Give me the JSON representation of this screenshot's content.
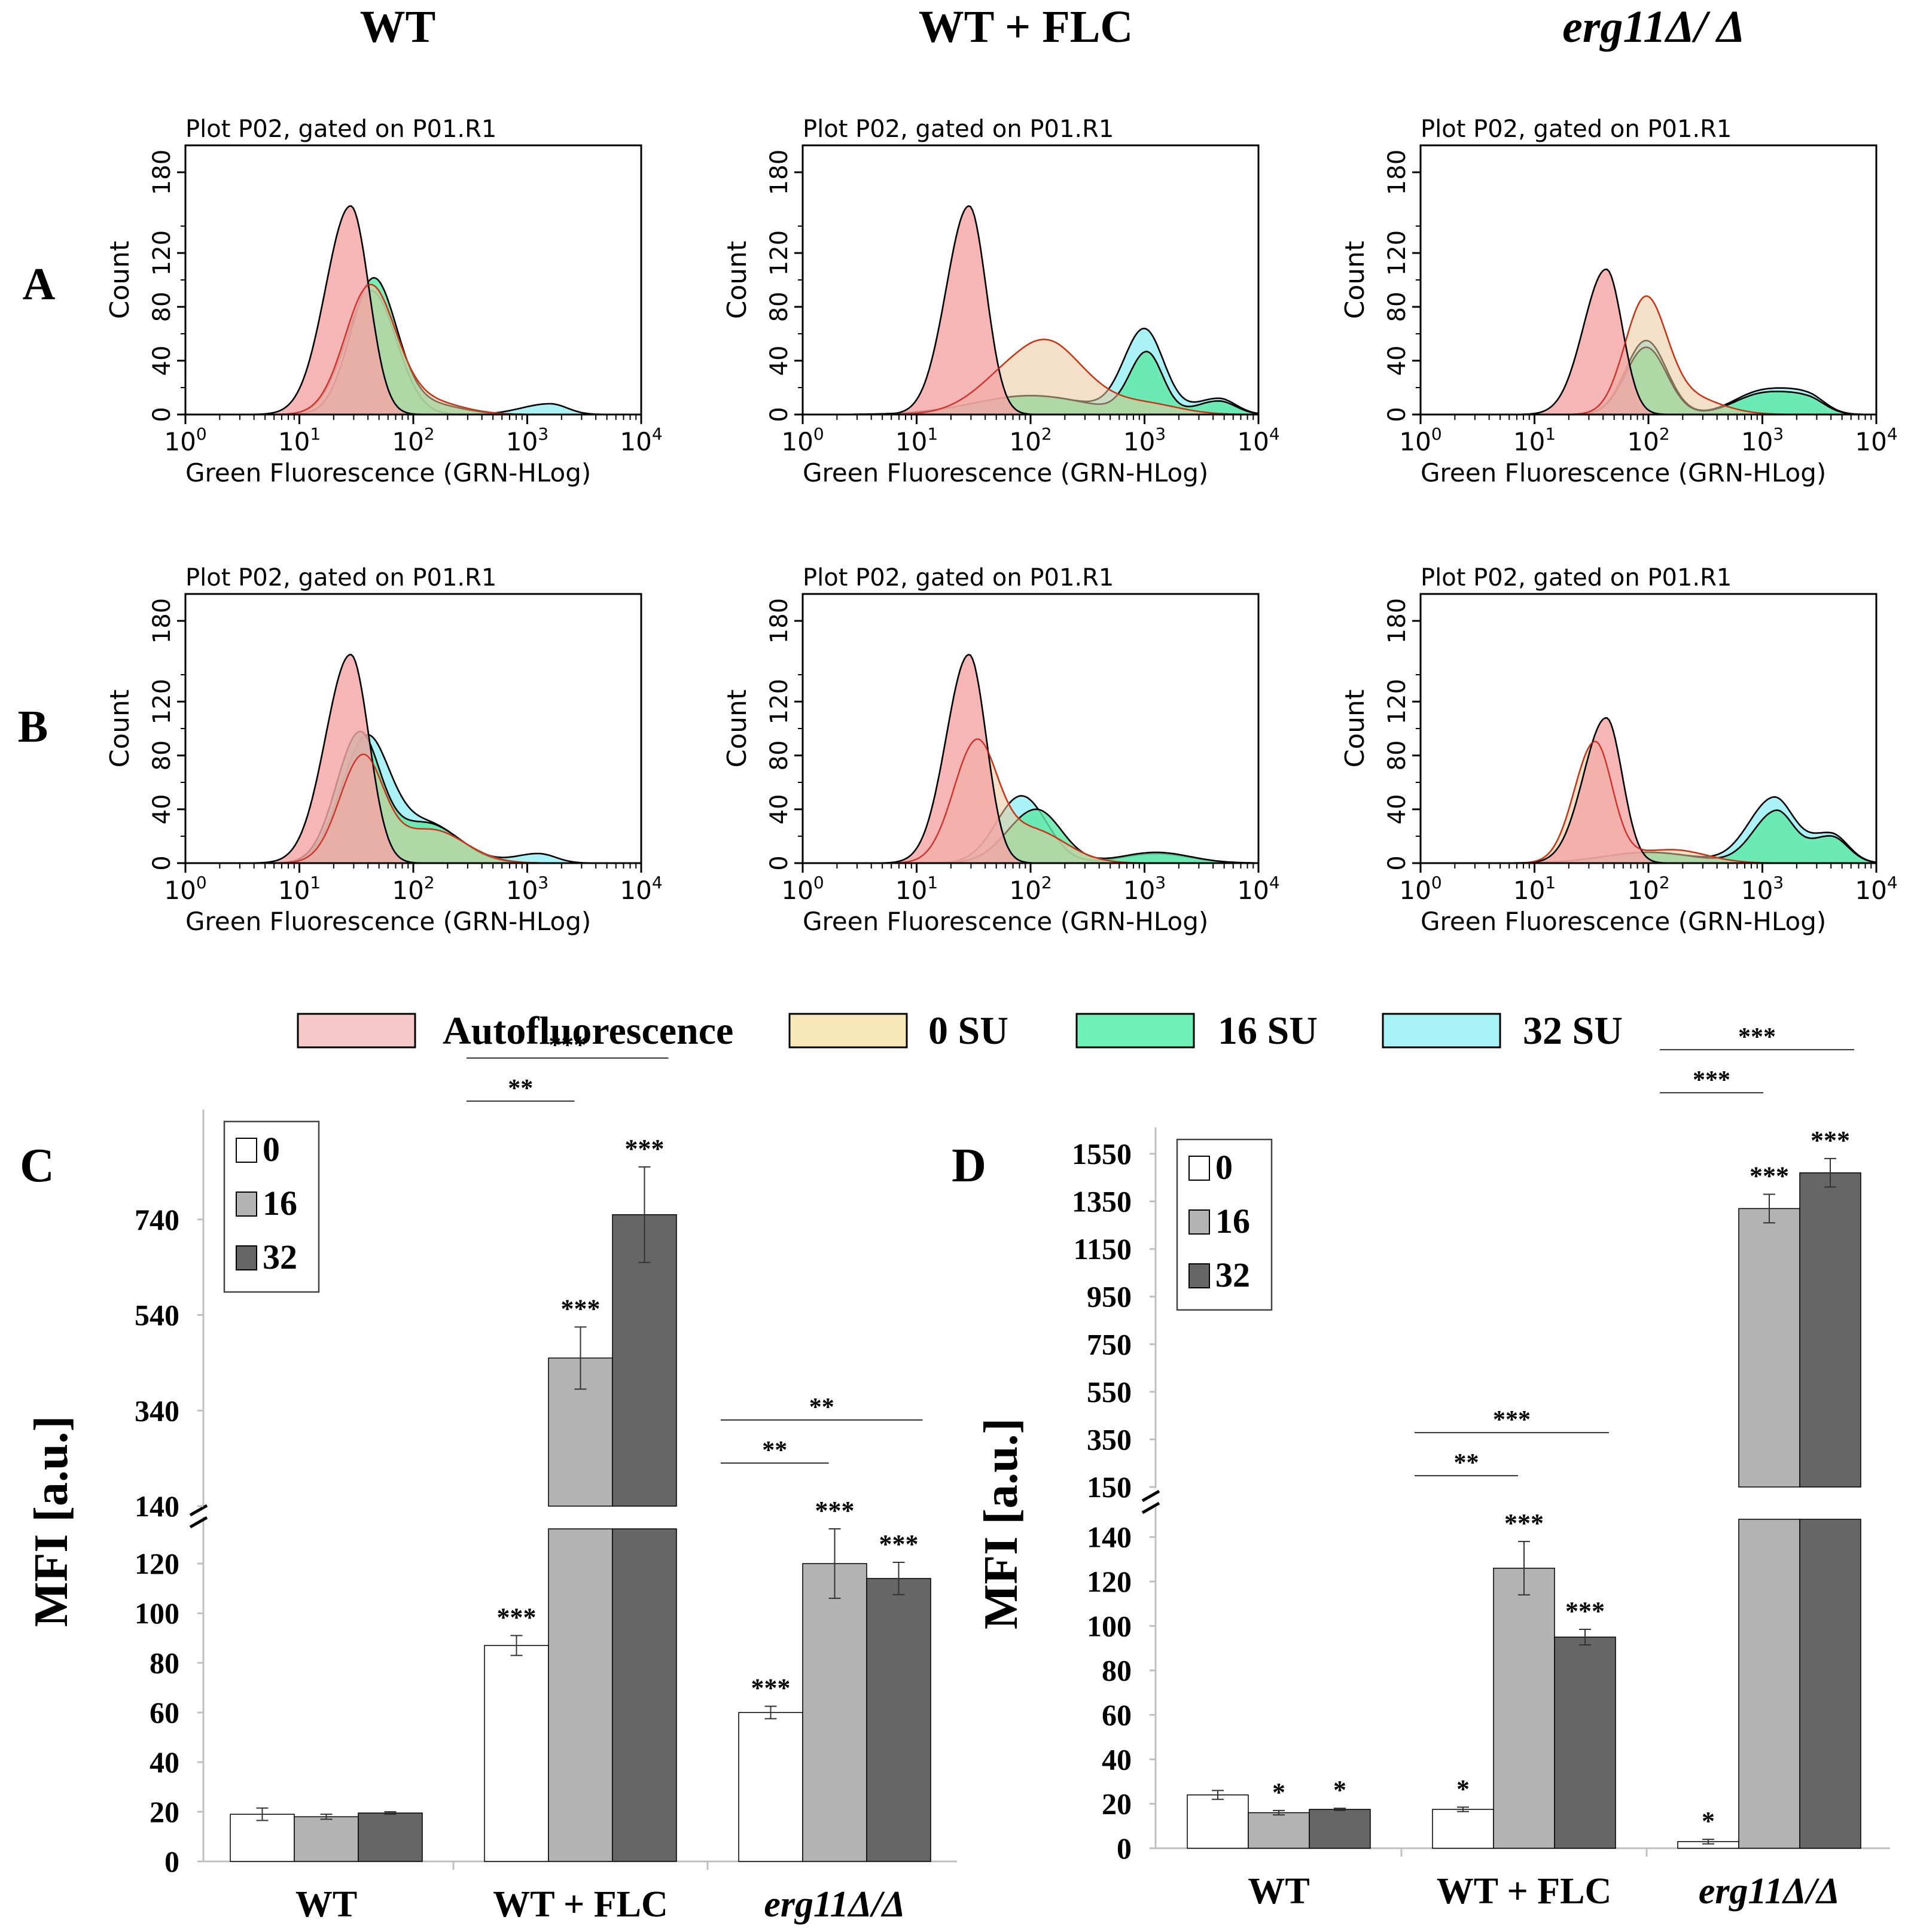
{
  "columns": [
    {
      "label": "WT",
      "italic": false
    },
    {
      "label": "WT + FLC",
      "italic": false
    },
    {
      "label": "erg11Δ/ Δ",
      "italic": true
    }
  ],
  "row_labels": [
    "A",
    "B"
  ],
  "panel_labels": {
    "C": "C",
    "D": "D"
  },
  "histogram_common": {
    "title": "Plot P02, gated on P01.R1",
    "xlabel": "Green Fluorescence (GRN-HLog)",
    "ylabel": "Count",
    "y_ticks": [
      "0",
      "40",
      "80",
      "120",
      "180"
    ],
    "y_tick_values": [
      0,
      40,
      80,
      120,
      180
    ],
    "y_max": 200,
    "x_range_log10": [
      0,
      4
    ],
    "x_tick_base": "10",
    "x_tick_exponents": [
      "0",
      "1",
      "2",
      "3",
      "4"
    ]
  },
  "legend": [
    {
      "label": "Autofluorescence",
      "color": "#f6c9c9"
    },
    {
      "label": "0 SU",
      "color": "#f8e7b8"
    },
    {
      "label": "16 SU",
      "color": "#6ff0b4"
    },
    {
      "label": "32 SU",
      "color": "#a8f3f8"
    }
  ],
  "colors": {
    "auto_fill": "#f4a6a6",
    "su0_fill": "#e8c89a",
    "su16_fill": "#5ee8a6",
    "su32_fill": "#9cf0f4",
    "auto_line": "#c81e1e",
    "su0_line": "#c8a020",
    "bar_0": "#ffffff",
    "bar_16": "#b3b3b3",
    "bar_32": "#666666"
  },
  "chart_data": [
    {
      "type": "area",
      "panel": "A-WT",
      "x_scale": "log10",
      "series": [
        {
          "name": "Autofluorescence",
          "peaks": [
            {
              "x": 1.45,
              "y": 155,
              "sl": 0.22,
              "sr": 0.16
            }
          ]
        },
        {
          "name": "0 SU",
          "peaks": [
            {
              "x": 1.62,
              "y": 95,
              "sl": 0.22,
              "sr": 0.22
            },
            {
              "x": 2.1,
              "y": 10,
              "sl": 0.25,
              "sr": 0.3
            }
          ]
        },
        {
          "name": "16 SU",
          "peaks": [
            {
              "x": 1.65,
              "y": 100,
              "sl": 0.2,
              "sr": 0.2
            },
            {
              "x": 2.1,
              "y": 8,
              "sl": 0.25,
              "sr": 0.3
            }
          ]
        },
        {
          "name": "32 SU",
          "peaks": [
            {
              "x": 1.63,
              "y": 92,
              "sl": 0.22,
              "sr": 0.22
            },
            {
              "x": 3.2,
              "y": 8,
              "sl": 0.25,
              "sr": 0.15
            }
          ]
        }
      ]
    },
    {
      "type": "area",
      "panel": "A-WT+FLC",
      "x_scale": "log10",
      "series": [
        {
          "name": "Autofluorescence",
          "peaks": [
            {
              "x": 1.46,
              "y": 155,
              "sl": 0.2,
              "sr": 0.15
            }
          ]
        },
        {
          "name": "0 SU",
          "peaks": [
            {
              "x": 1.95,
              "y": 40,
              "sl": 0.35,
              "sr": 0.3
            },
            {
              "x": 2.3,
              "y": 28,
              "sl": 0.25,
              "sr": 0.3
            },
            {
              "x": 3.0,
              "y": 8,
              "sl": 0.3,
              "sr": 0.3
            }
          ]
        },
        {
          "name": "16 SU",
          "peaks": [
            {
              "x": 2.0,
              "y": 14,
              "sl": 0.5,
              "sr": 0.5
            },
            {
              "x": 3.02,
              "y": 45,
              "sl": 0.15,
              "sr": 0.14
            },
            {
              "x": 3.65,
              "y": 10,
              "sl": 0.2,
              "sr": 0.15
            }
          ]
        },
        {
          "name": "32 SU",
          "peaks": [
            {
              "x": 2.0,
              "y": 14,
              "sl": 0.5,
              "sr": 0.5
            },
            {
              "x": 3.0,
              "y": 62,
              "sl": 0.18,
              "sr": 0.17
            },
            {
              "x": 3.65,
              "y": 12,
              "sl": 0.2,
              "sr": 0.15
            }
          ]
        }
      ]
    },
    {
      "type": "area",
      "panel": "A-erg11",
      "x_scale": "log10",
      "series": [
        {
          "name": "Autofluorescence",
          "peaks": [
            {
              "x": 1.63,
              "y": 108,
              "sl": 0.2,
              "sr": 0.14
            }
          ]
        },
        {
          "name": "0 SU",
          "peaks": [
            {
              "x": 1.97,
              "y": 82,
              "sl": 0.18,
              "sr": 0.18
            },
            {
              "x": 2.3,
              "y": 14,
              "sl": 0.25,
              "sr": 0.3
            }
          ]
        },
        {
          "name": "16 SU",
          "peaks": [
            {
              "x": 1.98,
              "y": 50,
              "sl": 0.18,
              "sr": 0.18
            },
            {
              "x": 3.0,
              "y": 15,
              "sl": 0.25,
              "sr": 0.25
            },
            {
              "x": 3.4,
              "y": 10,
              "sl": 0.2,
              "sr": 0.15
            }
          ]
        },
        {
          "name": "32 SU",
          "peaks": [
            {
              "x": 1.98,
              "y": 55,
              "sl": 0.18,
              "sr": 0.18
            },
            {
              "x": 3.0,
              "y": 17,
              "sl": 0.25,
              "sr": 0.25
            },
            {
              "x": 3.4,
              "y": 12,
              "sl": 0.2,
              "sr": 0.15
            }
          ]
        }
      ]
    },
    {
      "type": "area",
      "panel": "B-WT",
      "x_scale": "log10",
      "series": [
        {
          "name": "Autofluorescence",
          "peaks": [
            {
              "x": 1.45,
              "y": 155,
              "sl": 0.22,
              "sr": 0.16
            }
          ]
        },
        {
          "name": "0 SU",
          "peaks": [
            {
              "x": 1.55,
              "y": 75,
              "sl": 0.2,
              "sr": 0.18
            },
            {
              "x": 2.15,
              "y": 25,
              "sl": 0.35,
              "sr": 0.3
            }
          ]
        },
        {
          "name": "16 SU",
          "peaks": [
            {
              "x": 1.52,
              "y": 90,
              "sl": 0.2,
              "sr": 0.18
            },
            {
              "x": 2.1,
              "y": 30,
              "sl": 0.35,
              "sr": 0.3
            }
          ]
        },
        {
          "name": "32 SU",
          "peaks": [
            {
              "x": 1.58,
              "y": 85,
              "sl": 0.22,
              "sr": 0.2
            },
            {
              "x": 2.1,
              "y": 30,
              "sl": 0.35,
              "sr": 0.3
            },
            {
              "x": 3.1,
              "y": 7,
              "sl": 0.2,
              "sr": 0.15
            }
          ]
        }
      ]
    },
    {
      "type": "area",
      "panel": "B-WT+FLC",
      "x_scale": "log10",
      "series": [
        {
          "name": "Autofluorescence",
          "peaks": [
            {
              "x": 1.46,
              "y": 155,
              "sl": 0.2,
              "sr": 0.15
            }
          ]
        },
        {
          "name": "0 SU",
          "peaks": [
            {
              "x": 1.52,
              "y": 85,
              "sl": 0.2,
              "sr": 0.18
            },
            {
              "x": 2.0,
              "y": 25,
              "sl": 0.3,
              "sr": 0.3
            }
          ]
        },
        {
          "name": "16 SU",
          "peaks": [
            {
              "x": 2.05,
              "y": 40,
              "sl": 0.25,
              "sr": 0.22
            },
            {
              "x": 3.1,
              "y": 8,
              "sl": 0.3,
              "sr": 0.3
            }
          ]
        },
        {
          "name": "32 SU",
          "peaks": [
            {
              "x": 1.92,
              "y": 50,
              "sl": 0.22,
              "sr": 0.22
            },
            {
              "x": 3.1,
              "y": 7,
              "sl": 0.3,
              "sr": 0.3
            }
          ]
        }
      ]
    },
    {
      "type": "area",
      "panel": "B-erg11",
      "x_scale": "log10",
      "series": [
        {
          "name": "Autofluorescence",
          "peaks": [
            {
              "x": 1.63,
              "y": 108,
              "sl": 0.2,
              "sr": 0.14
            }
          ]
        },
        {
          "name": "0 SU",
          "peaks": [
            {
              "x": 1.53,
              "y": 88,
              "sl": 0.18,
              "sr": 0.15
            },
            {
              "x": 2.2,
              "y": 10,
              "sl": 0.4,
              "sr": 0.3
            }
          ]
        },
        {
          "name": "16 SU",
          "peaks": [
            {
              "x": 2.0,
              "y": 8,
              "sl": 0.4,
              "sr": 0.4
            },
            {
              "x": 3.12,
              "y": 38,
              "sl": 0.2,
              "sr": 0.15
            },
            {
              "x": 3.6,
              "y": 20,
              "sl": 0.2,
              "sr": 0.15
            }
          ]
        },
        {
          "name": "32 SU",
          "peaks": [
            {
              "x": 2.0,
              "y": 8,
              "sl": 0.4,
              "sr": 0.4
            },
            {
              "x": 3.1,
              "y": 48,
              "sl": 0.22,
              "sr": 0.17
            },
            {
              "x": 3.6,
              "y": 22,
              "sl": 0.2,
              "sr": 0.15
            }
          ]
        }
      ]
    },
    {
      "type": "bar",
      "panel": "C",
      "ylabel": "MFI [a.u.]",
      "categories": [
        "WT",
        "WT + FLC",
        "erg11Δ/Δ"
      ],
      "categories_italic": [
        false,
        false,
        true
      ],
      "series": [
        {
          "name": "0",
          "values": [
            19,
            87,
            60
          ],
          "errors": [
            2.5,
            4,
            2.5
          ],
          "stars": [
            "",
            "***",
            "***"
          ]
        },
        {
          "name": "16",
          "values": [
            18,
            450,
            120
          ],
          "errors": [
            1,
            65,
            14
          ],
          "stars": [
            "",
            "***",
            "***"
          ]
        },
        {
          "name": "32",
          "values": [
            19.5,
            750,
            114
          ],
          "errors": [
            0.5,
            100,
            6.5
          ],
          "stars": [
            "",
            "***",
            "***"
          ]
        }
      ],
      "brackets": [
        {
          "category": 1,
          "label": "**",
          "span": [
            0,
            1
          ],
          "level": 0
        },
        {
          "category": 1,
          "label": "***",
          "span": [
            0,
            2
          ],
          "level": 1
        },
        {
          "category": 2,
          "label": "**",
          "span": [
            0,
            1
          ],
          "level": 0
        },
        {
          "category": 2,
          "label": "**",
          "span": [
            0,
            2
          ],
          "level": 1
        }
      ],
      "lower_ticks": [
        0,
        20,
        40,
        60,
        80,
        100,
        120
      ],
      "upper_ticks": [
        140,
        340,
        540,
        740
      ],
      "lower_range": [
        0,
        134
      ],
      "upper_range": [
        140,
        920
      ]
    },
    {
      "type": "bar",
      "panel": "D",
      "ylabel": "MFI [a.u.]",
      "categories": [
        "WT",
        "WT + FLC",
        "erg11Δ/Δ"
      ],
      "categories_italic": [
        false,
        false,
        true
      ],
      "series": [
        {
          "name": "0",
          "values": [
            24,
            17.5,
            3
          ],
          "errors": [
            2,
            1,
            1
          ],
          "stars": [
            "",
            "*",
            "*"
          ]
        },
        {
          "name": "16",
          "values": [
            16,
            126,
            1320
          ],
          "errors": [
            1,
            12,
            60
          ],
          "stars": [
            "*",
            "***",
            "***"
          ]
        },
        {
          "name": "32",
          "values": [
            17.5,
            95,
            1470
          ],
          "errors": [
            0.5,
            3.5,
            60
          ],
          "stars": [
            "*",
            "***",
            "***"
          ]
        }
      ],
      "brackets": [
        {
          "category": 1,
          "label": "**",
          "span": [
            0,
            1
          ],
          "level": 0
        },
        {
          "category": 1,
          "label": "***",
          "span": [
            0,
            2
          ],
          "level": 1
        },
        {
          "category": 2,
          "label": "***",
          "span": [
            0,
            1
          ],
          "level": 0
        },
        {
          "category": 2,
          "label": "***",
          "span": [
            0,
            2
          ],
          "level": 1
        }
      ],
      "lower_ticks": [
        0,
        20,
        40,
        60,
        80,
        100,
        120,
        140
      ],
      "upper_ticks": [
        150,
        350,
        550,
        750,
        950,
        1150,
        1350,
        1550
      ],
      "lower_range": [
        0,
        148
      ],
      "upper_range": [
        150,
        1560
      ]
    }
  ]
}
